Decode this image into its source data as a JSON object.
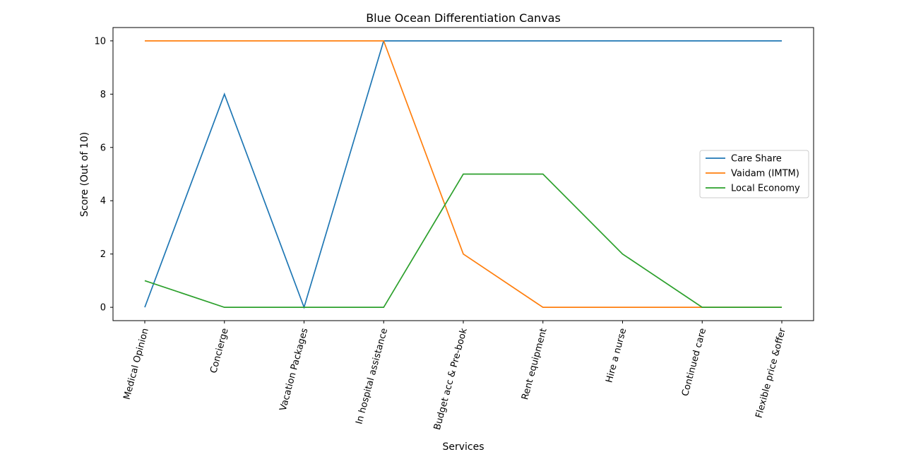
{
  "chart_data": {
    "type": "line",
    "title": "Blue Ocean Differentiation Canvas",
    "xlabel": "Services",
    "ylabel": "Score (Out of 10)",
    "categories": [
      "Medical Opinion",
      "Concierge",
      "Vacation Packages",
      "In hospital assistance",
      "Budget acc & Pre-book",
      "Rent equipment",
      "Hire a nurse",
      "Continued care",
      "Flexible price &offer"
    ],
    "ylim": [
      -0.5,
      10.5
    ],
    "yticks": [
      0,
      2,
      4,
      6,
      8,
      10
    ],
    "grid": false,
    "legend_position": "center-right",
    "series": [
      {
        "name": "Care Share",
        "color": "#1f77b4",
        "values": [
          0,
          8,
          0,
          10,
          10,
          10,
          10,
          10,
          10
        ]
      },
      {
        "name": "Vaidam (IMTM)",
        "color": "#ff7f0e",
        "values": [
          10,
          10,
          10,
          10,
          2,
          0,
          0,
          0,
          0
        ]
      },
      {
        "name": "Local Economy",
        "color": "#2ca02c",
        "values": [
          1,
          0,
          0,
          0,
          5,
          5,
          2,
          0,
          0
        ]
      }
    ]
  }
}
